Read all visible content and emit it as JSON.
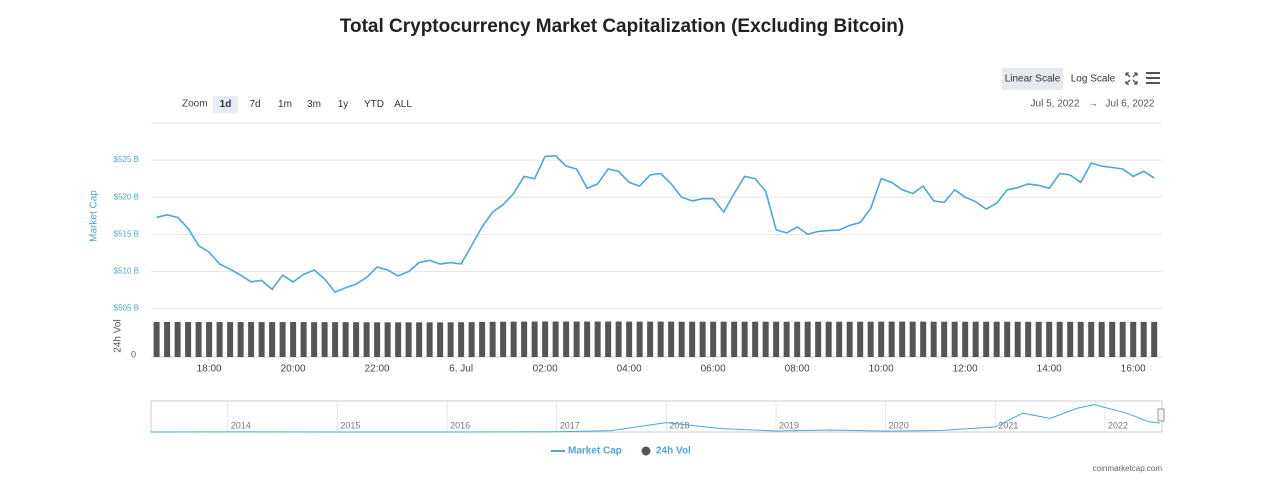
{
  "chart_data": {
    "type": "line",
    "title": "Total Cryptocurrency Market Capitalization (Excluding Bitcoin)",
    "zoom_label": "Zoom",
    "zoom_buttons": [
      "1d",
      "7d",
      "1m",
      "3m",
      "1y",
      "YTD",
      "ALL"
    ],
    "zoom_selected": 0,
    "scale_buttons": [
      "Linear Scale",
      "Log Scale"
    ],
    "scale_selected": 0,
    "date_range": {
      "from": "Jul 5, 2022",
      "separator": "→",
      "to": "Jul 6, 2022"
    },
    "credit": "coinmarketcap.com",
    "ylabel": "Market Cap",
    "y2label": "24h Vol",
    "grid": true,
    "x": [
      "16:45",
      "17:00",
      "17:15",
      "17:30",
      "17:45",
      "18:00",
      "18:15",
      "18:30",
      "18:45",
      "19:00",
      "19:15",
      "19:30",
      "19:45",
      "20:00",
      "20:15",
      "20:30",
      "20:45",
      "21:00",
      "21:15",
      "21:30",
      "21:45",
      "22:00",
      "22:15",
      "22:30",
      "22:45",
      "23:00",
      "23:15",
      "23:30",
      "23:45",
      "00:00",
      "00:15",
      "00:30",
      "00:45",
      "01:00",
      "01:15",
      "01:30",
      "01:45",
      "02:00",
      "02:15",
      "02:30",
      "02:45",
      "03:00",
      "03:15",
      "03:30",
      "03:45",
      "04:00",
      "04:15",
      "04:30",
      "04:45",
      "05:00",
      "05:15",
      "05:30",
      "05:45",
      "06:00",
      "06:15",
      "06:30",
      "06:45",
      "07:00",
      "07:15",
      "07:30",
      "07:45",
      "08:00",
      "08:15",
      "08:30",
      "08:45",
      "09:00",
      "09:15",
      "09:30",
      "09:45",
      "10:00",
      "10:15",
      "10:30",
      "10:45",
      "11:00",
      "11:15",
      "11:30",
      "11:45",
      "12:00",
      "12:15",
      "12:30",
      "12:45",
      "13:00",
      "13:15",
      "13:30",
      "13:45",
      "14:00",
      "14:15",
      "14:30",
      "14:45",
      "15:00",
      "15:15",
      "15:30",
      "15:45",
      "16:00",
      "16:15",
      "16:30"
    ],
    "xlim": [
      "16:37",
      "16:34"
    ],
    "xticks": [
      "18:00",
      "20:00",
      "22:00",
      {
        "value": "00:00",
        "label": "6. Jul"
      },
      "02:00",
      "04:00",
      "06:00",
      "08:00",
      "10:00",
      "12:00",
      "14:00",
      "16:00"
    ],
    "ylim": [
      504,
      530
    ],
    "yticks": [
      {
        "value": 505,
        "label": "$505 B"
      },
      {
        "value": 510,
        "label": "$510 B"
      },
      {
        "value": 515,
        "label": "$515 B"
      },
      {
        "value": 520,
        "label": "$520 B"
      },
      {
        "value": 525,
        "label": "$525 B"
      }
    ],
    "y2lim": [
      0,
      46
    ],
    "y2ticks": [
      0
    ],
    "series": [
      {
        "name": "Market Cap",
        "color": "#4aa8d8",
        "values": [
          517.3,
          517.6,
          517.3,
          515.8,
          513.5,
          512.6,
          511.0,
          510.3,
          509.5,
          508.6,
          508.8,
          507.6,
          509.5,
          508.6,
          509.6,
          510.2,
          509.0,
          507.2,
          507.8,
          508.3,
          509.2,
          510.6,
          510.2,
          509.4,
          510.0,
          511.2,
          511.5,
          511.0,
          511.2,
          511.0,
          513.5,
          516.0,
          518.0,
          519.0,
          520.5,
          522.8,
          522.5,
          525.5,
          525.6,
          524.2,
          523.8,
          521.2,
          521.8,
          523.8,
          523.5,
          522.0,
          521.5,
          523.0,
          523.2,
          521.8,
          520.0,
          519.5,
          519.8,
          519.8,
          518.0,
          520.5,
          522.8,
          522.5,
          520.8,
          515.6,
          515.2,
          516.0,
          515.0,
          515.4,
          515.5,
          515.6,
          516.2,
          516.6,
          518.5,
          522.5,
          522.0,
          521.0,
          520.5,
          521.5,
          519.5,
          519.3,
          521.0,
          520.0,
          519.4,
          518.4,
          519.2,
          521.0,
          521.3,
          521.8,
          521.6,
          521.2,
          523.2,
          523.0,
          522.0,
          524.6,
          524.2,
          524.0,
          523.8,
          522.8,
          523.5,
          522.6
        ]
      },
      {
        "name": "24h Vol",
        "color": "#555555",
        "axis": "y2",
        "type": "bar",
        "values": [
          39.3,
          39.3,
          39.3,
          39.3,
          39.3,
          39.2,
          39.2,
          39.2,
          39.2,
          39.2,
          39.2,
          39.2,
          39.2,
          39.2,
          39.2,
          39.1,
          39.1,
          39.1,
          39.1,
          39.1,
          39.0,
          38.9,
          38.9,
          38.9,
          38.9,
          38.9,
          38.9,
          38.9,
          38.9,
          39.0,
          39.1,
          39.3,
          39.5,
          39.6,
          39.7,
          39.7,
          39.8,
          39.8,
          39.8,
          39.8,
          39.8,
          39.8,
          39.8,
          39.8,
          39.8,
          39.7,
          39.7,
          39.7,
          39.7,
          39.7,
          39.6,
          39.6,
          39.6,
          39.6,
          39.6,
          39.6,
          39.6,
          39.6,
          39.6,
          39.6,
          39.6,
          39.6,
          39.6,
          39.6,
          39.6,
          39.6,
          39.6,
          39.6,
          39.6,
          39.7,
          39.7,
          39.7,
          39.7,
          39.7,
          39.6,
          39.6,
          39.6,
          39.6,
          39.6,
          39.6,
          39.6,
          39.6,
          39.6,
          39.5,
          39.5,
          39.5,
          39.5,
          39.5,
          39.4,
          39.4,
          39.4,
          39.4,
          39.4,
          39.4,
          39.4,
          39.4
        ]
      }
    ],
    "navigator": {
      "x": [
        2013.3,
        2014,
        2015,
        2016,
        2017,
        2017.5,
        2018.0,
        2018.5,
        2019,
        2019.5,
        2020,
        2020.5,
        2021,
        2021.25,
        2021.5,
        2021.75,
        2021.9,
        2022.2,
        2022.4,
        2022.5
      ],
      "values": [
        2,
        3,
        1,
        2,
        20,
        80,
        550,
        200,
        60,
        120,
        50,
        90,
        300,
        1100,
        800,
        1400,
        1600,
        1100,
        600,
        520
      ],
      "xlim": [
        2013.3,
        2022.52
      ],
      "ylim": [
        0,
        1700
      ],
      "xticks": [
        2014,
        2015,
        2016,
        2017,
        2018,
        2019,
        2020,
        2021,
        2022
      ]
    }
  }
}
